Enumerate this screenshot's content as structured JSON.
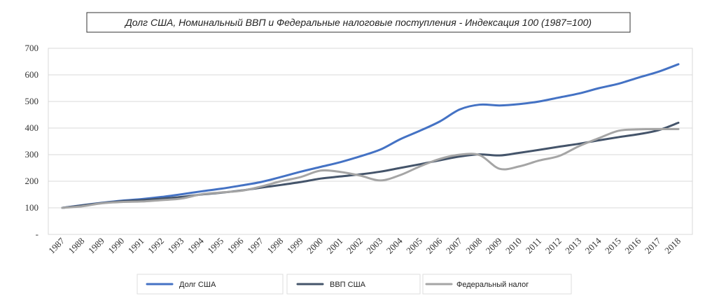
{
  "chart_data": {
    "type": "line",
    "title": "Долг США, Номинальный ВВП и Федеральные налоговые поступления - Индексация 100 (1987=100)",
    "categories": [
      "1987",
      "1988",
      "1989",
      "1990",
      "1991",
      "1992",
      "1993",
      "1994",
      "1995",
      "1996",
      "1997",
      "1998",
      "1999",
      "2000",
      "2001",
      "2002",
      "2003",
      "2004",
      "2005",
      "2006",
      "2007",
      "2008",
      "2009",
      "2010",
      "2011",
      "2012",
      "2013",
      "2014",
      "2015",
      "2016",
      "2017",
      "2018"
    ],
    "y_tick_labels": [
      "-",
      "100",
      "200",
      "300",
      "400",
      "500",
      "600",
      "700"
    ],
    "ylim": [
      0,
      700
    ],
    "grid": true,
    "legend_position": "bottom",
    "series": [
      {
        "name": "Долг США",
        "color": "#4472C4",
        "values": [
          100,
          110,
          119,
          127,
          133,
          141,
          151,
          162,
          172,
          184,
          197,
          216,
          236,
          254,
          272,
          294,
          319,
          358,
          390,
          425,
          470,
          488,
          485,
          490,
          500,
          515,
          530,
          550,
          567,
          590,
          612,
          640
        ]
      },
      {
        "name": "ВВП США",
        "color": "#44546A",
        "values": [
          100,
          109,
          118,
          125,
          129,
          135,
          141,
          150,
          157,
          165,
          176,
          186,
          197,
          210,
          218,
          226,
          236,
          250,
          264,
          279,
          293,
          301,
          297,
          307,
          318,
          330,
          341,
          354,
          366,
          377,
          392,
          420
        ]
      },
      {
        "name": "Федеральный налог",
        "color": "#A5A5A5",
        "values": [
          100,
          106,
          117,
          122,
          124,
          129,
          135,
          151,
          158,
          164,
          180,
          200,
          216,
          240,
          235,
          221,
          203,
          223,
          256,
          284,
          300,
          298,
          247,
          256,
          278,
          295,
          332,
          362,
          390,
          395,
          396,
          396
        ]
      }
    ]
  }
}
